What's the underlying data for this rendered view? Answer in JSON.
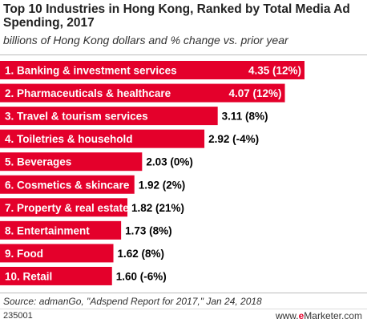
{
  "title": "Top 10 Industries in Hong Kong, Ranked by Total Media Ad Spending, 2017",
  "subtitle": "billions of Hong Kong dollars and % change vs. prior year",
  "source": "Source: admanGo, \"Adspend Report for 2017,\" Jan 24, 2018",
  "chart_id": "235001",
  "brand": {
    "prefix": "www.",
    "e": "e",
    "name": "Marketer",
    "suffix": ".com"
  },
  "colors": {
    "bar": "#e4002b",
    "bar_label": "#ffffff",
    "value_label": "#000000"
  },
  "chart_data": {
    "type": "bar",
    "orientation": "horizontal",
    "categories": [
      "1. Banking & investment services",
      "2. Pharmaceuticals & healthcare",
      "3. Travel & tourism services",
      "4. Toiletries & household",
      "5. Beverages",
      "6. Cosmetics & skincare",
      "7. Property & real estate",
      "8. Entertainment",
      "9. Food",
      "10. Retail"
    ],
    "values": [
      4.35,
      4.07,
      3.11,
      2.92,
      2.03,
      1.92,
      1.82,
      1.73,
      1.62,
      1.6
    ],
    "value_labels": [
      "4.35 (12%)",
      "4.07 (12%)",
      "3.11 (8%)",
      "2.92 (-4%)",
      "2.03 (0%)",
      "1.92 (2%)",
      "1.82 (21%)",
      "1.73 (8%)",
      "1.62 (8%)",
      "1.60 (-6%)"
    ],
    "pct_change": [
      12,
      12,
      8,
      -4,
      0,
      2,
      21,
      8,
      8,
      -6
    ],
    "title": "Top 10 Industries in Hong Kong, Ranked by Total Media Ad Spending, 2017",
    "subtitle": "billions of Hong Kong dollars and % change vs. prior year",
    "grid": false,
    "legend": "none"
  }
}
